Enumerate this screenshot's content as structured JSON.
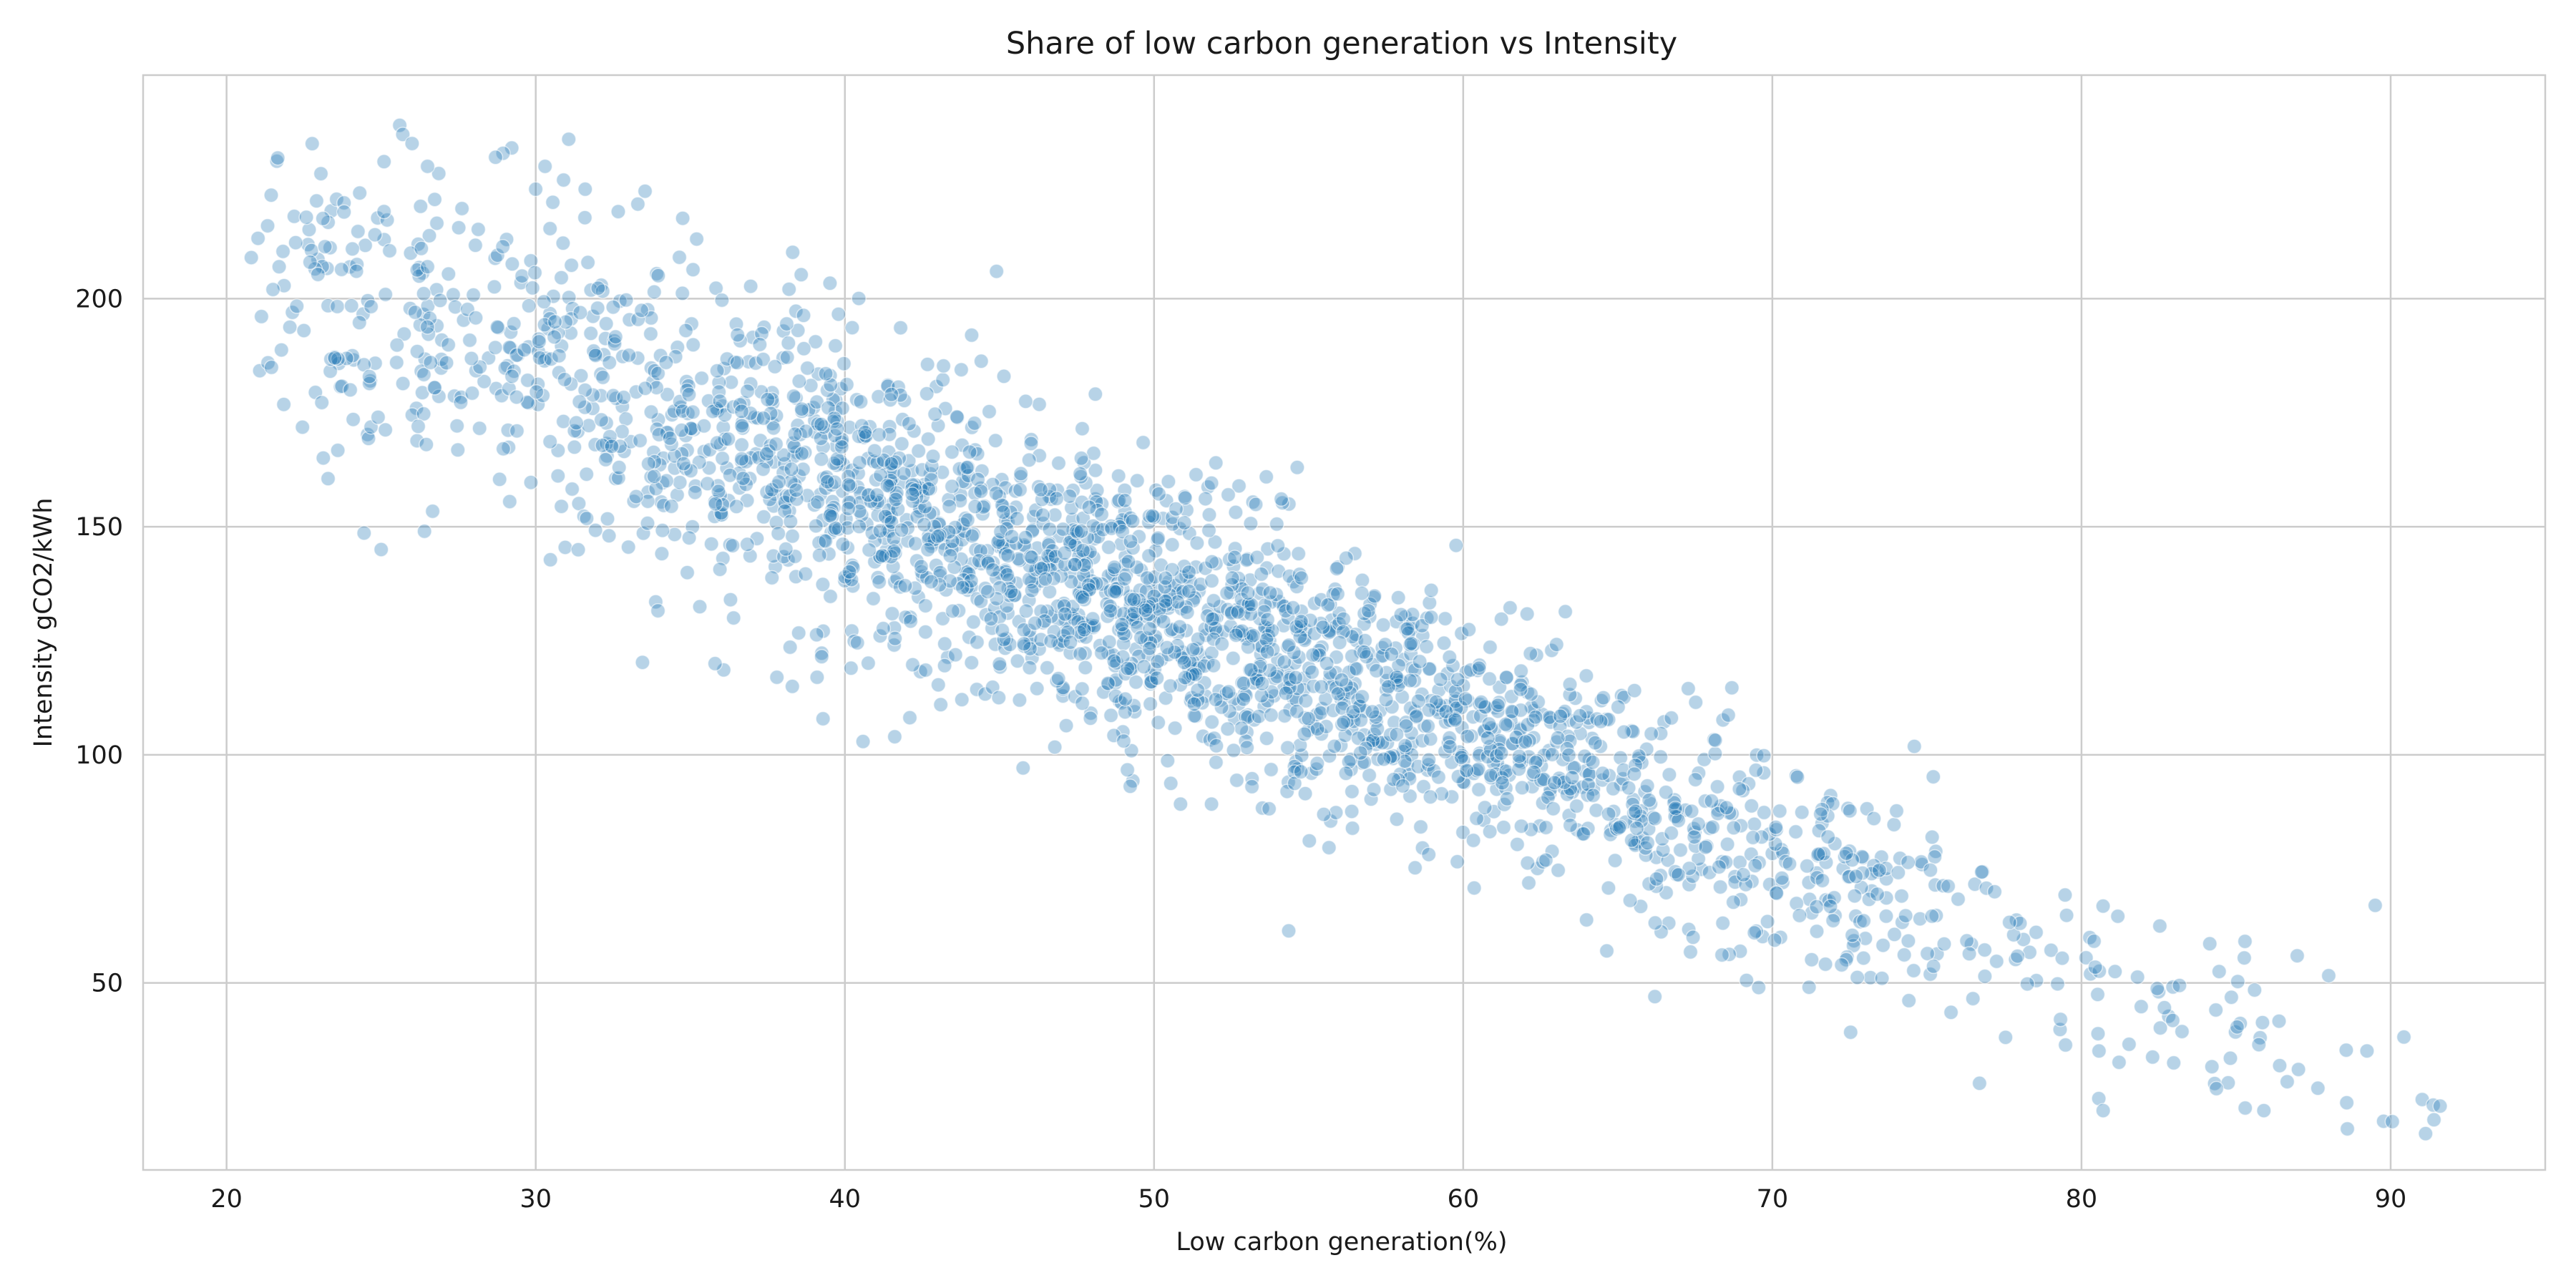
{
  "chart_data": {
    "type": "scatter",
    "title": "Share of low carbon generation vs Intensity",
    "xlabel": "Low carbon generation(%)",
    "ylabel": "Intensity gCO2/kWh",
    "xlim": [
      17.3,
      95.0
    ],
    "ylim": [
      9.0,
      249.0
    ],
    "xticks": [
      20,
      30,
      40,
      50,
      60,
      70,
      80,
      90
    ],
    "yticks": [
      50,
      100,
      150,
      200
    ],
    "grid": true,
    "legend": "none",
    "point_color": "#1f77b4",
    "approx_point_count": 2600,
    "trend": {
      "slope": -2.67,
      "intercept": 265.5,
      "noise_sd_at_low_x": 20,
      "noise_sd_at_high_x": 9
    },
    "sample_points": [
      [
        20.8,
        209
      ],
      [
        21.5,
        202
      ],
      [
        21.7,
        207
      ],
      [
        22.5,
        193
      ],
      [
        22.7,
        208
      ],
      [
        23.5,
        187
      ],
      [
        23.8,
        221
      ],
      [
        23.8,
        219
      ],
      [
        24.0,
        180
      ],
      [
        24.2,
        206
      ],
      [
        24.8,
        214
      ],
      [
        24.9,
        174
      ],
      [
        25.0,
        145
      ],
      [
        25.5,
        186
      ],
      [
        25.6,
        238
      ],
      [
        25.7,
        236
      ],
      [
        26.0,
        234
      ],
      [
        26.2,
        172
      ],
      [
        26.3,
        211
      ],
      [
        26.4,
        149
      ],
      [
        26.5,
        229
      ],
      [
        26.5,
        207
      ],
      [
        26.6,
        186
      ],
      [
        28.7,
        231
      ],
      [
        30.3,
        229
      ],
      [
        30.9,
        226
      ],
      [
        31.6,
        224
      ],
      [
        35.8,
        120
      ],
      [
        36.3,
        134
      ],
      [
        36.4,
        130
      ],
      [
        37.8,
        117
      ],
      [
        38.3,
        115
      ],
      [
        39.1,
        117
      ],
      [
        40.2,
        119
      ],
      [
        43.1,
        111
      ],
      [
        44.1,
        192
      ],
      [
        52.0,
        164
      ],
      [
        52.4,
        157
      ],
      [
        65.2,
        105
      ],
      [
        66.2,
        47
      ],
      [
        71.8,
        82
      ],
      [
        76.7,
        28
      ],
      [
        80.7,
        22
      ],
      [
        85.9,
        22
      ],
      [
        88.6,
        18
      ],
      [
        89.5,
        67
      ],
      [
        91.4,
        20
      ],
      [
        91.6,
        23
      ]
    ]
  }
}
